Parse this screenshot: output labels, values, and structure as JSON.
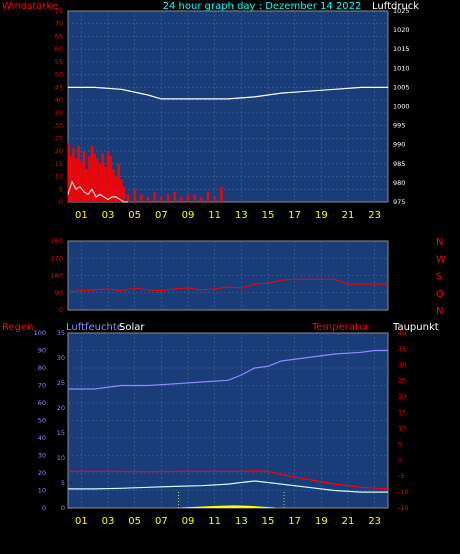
{
  "header": {
    "left_label": "Windstärke",
    "title": "24 hour graph day : Dezember 14 2022",
    "right_label": "Luftdruck"
  },
  "panel3_labels": {
    "regen": "Regen",
    "luftfeuchte": "Luftfeuchte",
    "solar": "Solar",
    "temperatur": "Temperatur",
    "taupunkt": "Taupunkt"
  },
  "colors": {
    "plot_bg": "#1a3c78",
    "grid": "#46649a",
    "wind": "#ff0000",
    "gust": "#ffffff",
    "pressure": "#ffffff",
    "humidity": "#8c8cff",
    "temperature": "#ff0000",
    "dewpoint": "#c8ffff",
    "solar": "#ffff00",
    "hour_labels": "#ffff00",
    "title": "#00ffff"
  },
  "chart_data": [
    {
      "type": "line",
      "name": "wind-pressure",
      "x_ticks": [
        "01",
        "03",
        "05",
        "07",
        "09",
        "11",
        "13",
        "15",
        "17",
        "19",
        "21",
        "23"
      ],
      "left_axis": {
        "label": "Windstärke",
        "ticks": [
          0,
          5,
          10,
          15,
          20,
          25,
          30,
          35,
          40,
          45,
          50,
          55,
          60,
          65,
          70,
          75
        ],
        "range": [
          0,
          75
        ]
      },
      "right_axis": {
        "label": "Luftdruck",
        "ticks": [
          975,
          980,
          985,
          990,
          995,
          1000,
          1005,
          1010,
          1015,
          1020,
          1025
        ],
        "range": [
          975,
          1025
        ]
      },
      "series": [
        {
          "name": "Luftdruck",
          "axis": "right",
          "x": [
            0,
            2,
            4,
            6,
            7,
            8,
            10,
            12,
            14,
            15,
            16,
            18,
            20,
            22,
            23,
            24
          ],
          "y": [
            1005,
            1005,
            1004.5,
            1003,
            1002,
            1002,
            1002,
            1002,
            1002.5,
            1003,
            1003.5,
            1004,
            1004.5,
            1005,
            1005,
            1005
          ]
        },
        {
          "name": "Windstärke",
          "axis": "left",
          "x": [
            0.05,
            0.2,
            0.4,
            0.6,
            0.8,
            1.0,
            1.2,
            1.4,
            1.6,
            1.8,
            2.0,
            2.2,
            2.4,
            2.6,
            2.8,
            3.0,
            3.2,
            3.4,
            3.6,
            3.8,
            4.0,
            4.2,
            4.5,
            5.0,
            5.5,
            6.0,
            6.5,
            7.0,
            7.5,
            8.0,
            8.5,
            9.0,
            9.5,
            10.0,
            10.5,
            11.0,
            11.5
          ],
          "y": [
            23,
            18,
            21,
            17,
            22,
            16,
            20,
            13,
            18,
            22,
            19,
            17,
            15,
            19,
            14,
            20,
            18,
            13,
            10,
            15,
            9,
            6,
            3,
            5,
            3,
            2,
            4,
            2,
            3,
            4,
            2,
            3,
            3,
            2,
            4,
            2,
            6
          ]
        },
        {
          "name": "Böen",
          "axis": "left",
          "x": [
            0.0,
            0.3,
            0.6,
            0.9,
            1.2,
            1.5,
            1.8,
            2.1,
            2.4,
            2.7,
            3.0,
            3.3,
            3.6,
            3.9,
            4.2,
            4.5
          ],
          "y": [
            3,
            8,
            5,
            6,
            4,
            3,
            5,
            2,
            3,
            2,
            1,
            2,
            2,
            1,
            0,
            0
          ]
        }
      ]
    },
    {
      "type": "line",
      "name": "wind-direction",
      "x_ticks": [
        "01",
        "03",
        "05",
        "07",
        "09",
        "11",
        "13",
        "15",
        "17",
        "19",
        "21",
        "23"
      ],
      "left_axis": {
        "ticks": [
          0,
          90,
          180,
          270,
          360
        ],
        "range": [
          0,
          360
        ]
      },
      "right_axis": {
        "ticks": [
          "N",
          "W",
          "S",
          "O",
          "N"
        ]
      },
      "series": [
        {
          "name": "Richtung",
          "x": [
            0,
            1,
            2,
            3,
            4,
            5,
            6,
            7,
            8,
            9,
            10,
            11,
            12,
            13,
            14,
            15,
            16,
            17,
            18,
            19,
            20,
            21,
            22,
            23,
            24
          ],
          "y": [
            95,
            100,
            105,
            110,
            100,
            115,
            105,
            100,
            110,
            115,
            105,
            110,
            120,
            115,
            135,
            140,
            155,
            160,
            160,
            160,
            160,
            135,
            135,
            135,
            135
          ]
        }
      ]
    },
    {
      "type": "line",
      "name": "humidity-temp-solar",
      "x_ticks": [
        "01",
        "03",
        "05",
        "07",
        "09",
        "11",
        "13",
        "15",
        "17",
        "19",
        "21",
        "23"
      ],
      "axes": {
        "regen": {
          "ticks": [
            0,
            10,
            20,
            30,
            40,
            50,
            60,
            70,
            80,
            90,
            100
          ]
        },
        "luftfeuchte": {
          "ticks": [
            0,
            5,
            10,
            15,
            20,
            25,
            30,
            35
          ]
        },
        "temperatur": {
          "ticks": [
            -15,
            -10,
            -5,
            0,
            5,
            10,
            15,
            20,
            25,
            30,
            35,
            40
          ],
          "range": [
            -15,
            40
          ]
        }
      },
      "series": [
        {
          "name": "Luftfeuchte",
          "axis": "regen",
          "x": [
            0,
            2,
            4,
            6,
            8,
            10,
            12,
            13,
            14,
            15,
            16,
            18,
            20,
            22,
            23,
            24
          ],
          "y": [
            68,
            68,
            70,
            70,
            71,
            72,
            73,
            76,
            80,
            81,
            84,
            86,
            88,
            89,
            90,
            90
          ]
        },
        {
          "name": "Temperatur",
          "axis": "temperatur",
          "x": [
            0,
            2,
            4,
            6,
            8,
            10,
            12,
            13,
            14,
            15,
            16,
            18,
            20,
            22,
            24
          ],
          "y": [
            -3.5,
            -3.5,
            -3.5,
            -3.6,
            -3.5,
            -3.5,
            -3.5,
            -3.5,
            -3.3,
            -3.5,
            -4.5,
            -6,
            -7.5,
            -8.5,
            -9
          ]
        },
        {
          "name": "Taupunkt",
          "axis": "temperatur",
          "x": [
            0,
            2,
            4,
            6,
            8,
            10,
            12,
            13,
            14,
            15,
            16,
            18,
            20,
            22,
            24
          ],
          "y": [
            -9,
            -9,
            -8.8,
            -8.5,
            -8.2,
            -8,
            -7.5,
            -7,
            -6.5,
            -7,
            -7.5,
            -8.5,
            -9.5,
            -10,
            -10
          ]
        },
        {
          "name": "Solar",
          "axis": "regen",
          "x": [
            8.5,
            9.5,
            10.5,
            11.5,
            12.5,
            13.5,
            14.5,
            15.5
          ],
          "y": [
            0.3,
            0.6,
            1.0,
            1.3,
            1.5,
            1.3,
            0.8,
            0.3
          ]
        }
      ]
    }
  ]
}
